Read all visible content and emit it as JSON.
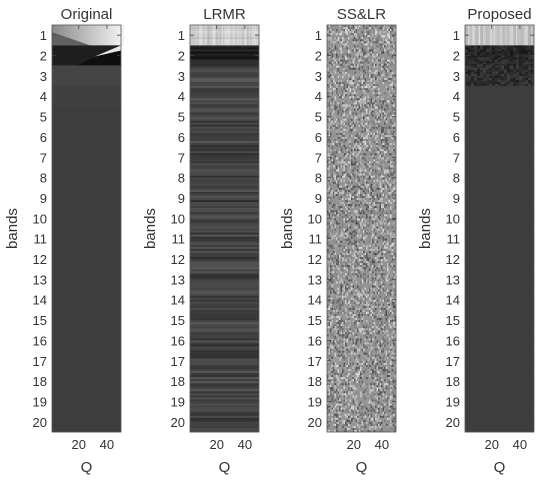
{
  "chart_data": [
    {
      "type": "heatmap",
      "title": "Original",
      "xlabel": "Q",
      "ylabel": "bands",
      "x_ticks": [
        20,
        40
      ],
      "y_ticks": [
        "1",
        "2",
        "3",
        "4",
        "5",
        "6",
        "7",
        "8",
        "9",
        "10",
        "11",
        "12",
        "13",
        "14",
        "15",
        "16",
        "17",
        "18",
        "19",
        "20"
      ],
      "xlim": [
        1,
        50
      ],
      "ylim": [
        1,
        20
      ],
      "colormap": "gray",
      "pattern": "band1 bright gradient; band2 dark with bright top-right; bands 3-4 slightly lighter gray; bands 5-20 uniform dark gray",
      "band_levels": [
        0.82,
        0.12,
        0.27,
        0.25,
        0.24,
        0.24,
        0.24,
        0.24,
        0.24,
        0.24,
        0.24,
        0.24,
        0.24,
        0.24,
        0.24,
        0.24,
        0.24,
        0.24,
        0.24,
        0.24
      ]
    },
    {
      "type": "heatmap",
      "title": "LRMR",
      "xlabel": "Q",
      "ylabel": "bands",
      "x_ticks": [
        20,
        40
      ],
      "y_ticks": [
        "1",
        "2",
        "3",
        "4",
        "5",
        "6",
        "7",
        "8",
        "9",
        "10",
        "11",
        "12",
        "13",
        "14",
        "15",
        "16",
        "17",
        "18",
        "19",
        "20"
      ],
      "xlim": [
        1,
        50
      ],
      "ylim": [
        1,
        20
      ],
      "colormap": "gray",
      "pattern": "horizontal streaks across all bands; band1 light streaky; band2 dark",
      "band_levels": [
        0.78,
        0.12,
        0.28,
        0.27,
        0.26,
        0.26,
        0.26,
        0.26,
        0.26,
        0.26,
        0.26,
        0.26,
        0.26,
        0.26,
        0.26,
        0.26,
        0.26,
        0.26,
        0.26,
        0.26
      ]
    },
    {
      "type": "heatmap",
      "title": "SS&LR",
      "xlabel": "Q",
      "ylabel": "bands",
      "x_ticks": [
        20,
        40
      ],
      "y_ticks": [
        "1",
        "2",
        "3",
        "4",
        "5",
        "6",
        "7",
        "8",
        "9",
        "10",
        "11",
        "12",
        "13",
        "14",
        "15",
        "16",
        "17",
        "18",
        "19",
        "20"
      ],
      "xlim": [
        1,
        50
      ],
      "ylim": [
        1,
        20
      ],
      "colormap": "gray",
      "pattern": "uniform random gray noise over all bands",
      "band_levels": [
        0.62,
        0.58,
        0.58,
        0.58,
        0.58,
        0.58,
        0.58,
        0.58,
        0.58,
        0.58,
        0.58,
        0.58,
        0.58,
        0.58,
        0.58,
        0.58,
        0.58,
        0.58,
        0.58,
        0.58
      ]
    },
    {
      "type": "heatmap",
      "title": "Proposed",
      "xlabel": "Q",
      "ylabel": "bands",
      "x_ticks": [
        20,
        40
      ],
      "y_ticks": [
        "1",
        "2",
        "3",
        "4",
        "5",
        "6",
        "7",
        "8",
        "9",
        "10",
        "11",
        "12",
        "13",
        "14",
        "15",
        "16",
        "17",
        "18",
        "19",
        "20"
      ],
      "xlim": [
        1,
        50
      ],
      "ylim": [
        1,
        20
      ],
      "colormap": "gray",
      "pattern": "band1 light streaky; bands 2-3 dark noisy; bands 4-20 uniform dark gray",
      "band_levels": [
        0.78,
        0.15,
        0.18,
        0.24,
        0.24,
        0.24,
        0.24,
        0.24,
        0.24,
        0.24,
        0.24,
        0.24,
        0.24,
        0.24,
        0.24,
        0.24,
        0.24,
        0.24,
        0.24,
        0.24
      ]
    }
  ]
}
